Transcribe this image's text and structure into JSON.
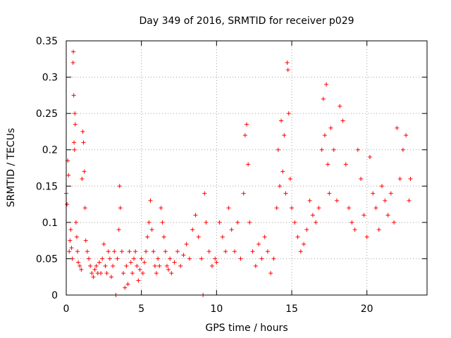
{
  "chart_data": {
    "type": "scatter",
    "title": "Day 349 of 2016, SRMTID for receiver p029",
    "xlabel": "GPS time / hours",
    "ylabel": "SRMTID / TECUs",
    "xlim": [
      0,
      24
    ],
    "ylim": [
      0,
      0.35
    ],
    "xticks": [
      0,
      5,
      10,
      15,
      20
    ],
    "xtick_labels": [
      "0",
      "5",
      "10",
      "15",
      "20"
    ],
    "yticks": [
      0,
      0.05,
      0.1,
      0.15,
      0.2,
      0.25,
      0.3,
      0.35
    ],
    "ytick_labels": [
      "0",
      "0.05",
      "0.1",
      "0.15",
      "0.2",
      "0.25",
      "0.3",
      "0.35"
    ],
    "grid": true,
    "marker": "+",
    "series_color": "#ff0000",
    "series": [
      {
        "name": "SRMTID",
        "points": [
          [
            0.0,
            0.14
          ],
          [
            0.05,
            0.125
          ],
          [
            0.1,
            0.185
          ],
          [
            0.15,
            0.165
          ],
          [
            0.2,
            0.06
          ],
          [
            0.25,
            0.075
          ],
          [
            0.3,
            0.09
          ],
          [
            0.35,
            0.065
          ],
          [
            0.4,
            0.05
          ],
          [
            0.45,
            0.32
          ],
          [
            0.47,
            0.335
          ],
          [
            0.5,
            0.275
          ],
          [
            0.52,
            0.21
          ],
          [
            0.55,
            0.2
          ],
          [
            0.57,
            0.25
          ],
          [
            0.6,
            0.235
          ],
          [
            0.65,
            0.1
          ],
          [
            0.7,
            0.08
          ],
          [
            0.75,
            0.06
          ],
          [
            0.8,
            0.045
          ],
          [
            0.9,
            0.04
          ],
          [
            1.0,
            0.035
          ],
          [
            1.05,
            0.16
          ],
          [
            1.1,
            0.225
          ],
          [
            1.15,
            0.21
          ],
          [
            1.2,
            0.17
          ],
          [
            1.25,
            0.12
          ],
          [
            1.3,
            0.075
          ],
          [
            1.4,
            0.06
          ],
          [
            1.5,
            0.05
          ],
          [
            1.6,
            0.04
          ],
          [
            1.7,
            0.03
          ],
          [
            1.8,
            0.025
          ],
          [
            1.9,
            0.035
          ],
          [
            2.0,
            0.04
          ],
          [
            2.1,
            0.03
          ],
          [
            2.2,
            0.045
          ],
          [
            2.3,
            0.03
          ],
          [
            2.4,
            0.05
          ],
          [
            2.5,
            0.07
          ],
          [
            2.6,
            0.04
          ],
          [
            2.7,
            0.03
          ],
          [
            2.8,
            0.06
          ],
          [
            2.9,
            0.05
          ],
          [
            3.0,
            0.025
          ],
          [
            3.1,
            0.04
          ],
          [
            3.2,
            0.06
          ],
          [
            3.3,
            0.0
          ],
          [
            3.4,
            0.05
          ],
          [
            3.5,
            0.09
          ],
          [
            3.55,
            0.15
          ],
          [
            3.6,
            0.12
          ],
          [
            3.7,
            0.06
          ],
          [
            3.8,
            0.03
          ],
          [
            3.9,
            0.01
          ],
          [
            4.0,
            0.04
          ],
          [
            4.1,
            0.015
          ],
          [
            4.2,
            0.06
          ],
          [
            4.3,
            0.045
          ],
          [
            4.4,
            0.03
          ],
          [
            4.5,
            0.05
          ],
          [
            4.6,
            0.06
          ],
          [
            4.7,
            0.04
          ],
          [
            4.8,
            0.02
          ],
          [
            4.9,
            0.035
          ],
          [
            5.0,
            0.05
          ],
          [
            5.1,
            0.03
          ],
          [
            5.2,
            0.045
          ],
          [
            5.3,
            0.06
          ],
          [
            5.4,
            0.08
          ],
          [
            5.5,
            0.1
          ],
          [
            5.6,
            0.13
          ],
          [
            5.7,
            0.09
          ],
          [
            5.8,
            0.06
          ],
          [
            5.9,
            0.04
          ],
          [
            6.0,
            0.03
          ],
          [
            6.1,
            0.05
          ],
          [
            6.2,
            0.04
          ],
          [
            6.3,
            0.12
          ],
          [
            6.4,
            0.1
          ],
          [
            6.5,
            0.08
          ],
          [
            6.6,
            0.06
          ],
          [
            6.7,
            0.04
          ],
          [
            6.8,
            0.035
          ],
          [
            6.9,
            0.05
          ],
          [
            7.0,
            0.03
          ],
          [
            7.2,
            0.045
          ],
          [
            7.4,
            0.06
          ],
          [
            7.6,
            0.04
          ],
          [
            7.8,
            0.055
          ],
          [
            8.0,
            0.07
          ],
          [
            8.2,
            0.05
          ],
          [
            8.4,
            0.09
          ],
          [
            8.6,
            0.11
          ],
          [
            8.8,
            0.08
          ],
          [
            9.0,
            0.05
          ],
          [
            9.1,
            0.0
          ],
          [
            9.2,
            0.14
          ],
          [
            9.3,
            0.1
          ],
          [
            9.5,
            0.06
          ],
          [
            9.7,
            0.04
          ],
          [
            9.9,
            0.05
          ],
          [
            10.0,
            0.045
          ],
          [
            10.2,
            0.1
          ],
          [
            10.4,
            0.08
          ],
          [
            10.6,
            0.06
          ],
          [
            10.8,
            0.12
          ],
          [
            11.0,
            0.09
          ],
          [
            11.2,
            0.06
          ],
          [
            11.4,
            0.1
          ],
          [
            11.6,
            0.05
          ],
          [
            11.8,
            0.14
          ],
          [
            11.9,
            0.22
          ],
          [
            12.0,
            0.235
          ],
          [
            12.1,
            0.18
          ],
          [
            12.2,
            0.1
          ],
          [
            12.4,
            0.06
          ],
          [
            12.6,
            0.04
          ],
          [
            12.8,
            0.07
          ],
          [
            13.0,
            0.05
          ],
          [
            13.2,
            0.08
          ],
          [
            13.4,
            0.06
          ],
          [
            13.6,
            0.03
          ],
          [
            13.8,
            0.05
          ],
          [
            14.0,
            0.12
          ],
          [
            14.1,
            0.2
          ],
          [
            14.2,
            0.15
          ],
          [
            14.3,
            0.24
          ],
          [
            14.4,
            0.17
          ],
          [
            14.5,
            0.22
          ],
          [
            14.6,
            0.14
          ],
          [
            14.7,
            0.32
          ],
          [
            14.75,
            0.31
          ],
          [
            14.8,
            0.25
          ],
          [
            14.9,
            0.16
          ],
          [
            15.0,
            0.12
          ],
          [
            15.2,
            0.1
          ],
          [
            15.4,
            0.08
          ],
          [
            15.6,
            0.06
          ],
          [
            15.8,
            0.07
          ],
          [
            16.0,
            0.09
          ],
          [
            16.2,
            0.13
          ],
          [
            16.4,
            0.11
          ],
          [
            16.6,
            0.1
          ],
          [
            16.8,
            0.12
          ],
          [
            17.0,
            0.2
          ],
          [
            17.1,
            0.27
          ],
          [
            17.2,
            0.22
          ],
          [
            17.3,
            0.29
          ],
          [
            17.4,
            0.18
          ],
          [
            17.5,
            0.14
          ],
          [
            17.6,
            0.23
          ],
          [
            17.8,
            0.2
          ],
          [
            18.0,
            0.13
          ],
          [
            18.2,
            0.26
          ],
          [
            18.4,
            0.24
          ],
          [
            18.6,
            0.18
          ],
          [
            18.8,
            0.12
          ],
          [
            19.0,
            0.1
          ],
          [
            19.2,
            0.09
          ],
          [
            19.4,
            0.2
          ],
          [
            19.6,
            0.16
          ],
          [
            19.8,
            0.11
          ],
          [
            20.0,
            0.08
          ],
          [
            20.2,
            0.19
          ],
          [
            20.4,
            0.14
          ],
          [
            20.6,
            0.12
          ],
          [
            20.8,
            0.09
          ],
          [
            21.0,
            0.15
          ],
          [
            21.2,
            0.13
          ],
          [
            21.4,
            0.11
          ],
          [
            21.6,
            0.14
          ],
          [
            21.8,
            0.1
          ],
          [
            22.0,
            0.23
          ],
          [
            22.2,
            0.16
          ],
          [
            22.4,
            0.2
          ],
          [
            22.6,
            0.22
          ],
          [
            22.8,
            0.13
          ],
          [
            22.9,
            0.16
          ]
        ]
      }
    ]
  }
}
